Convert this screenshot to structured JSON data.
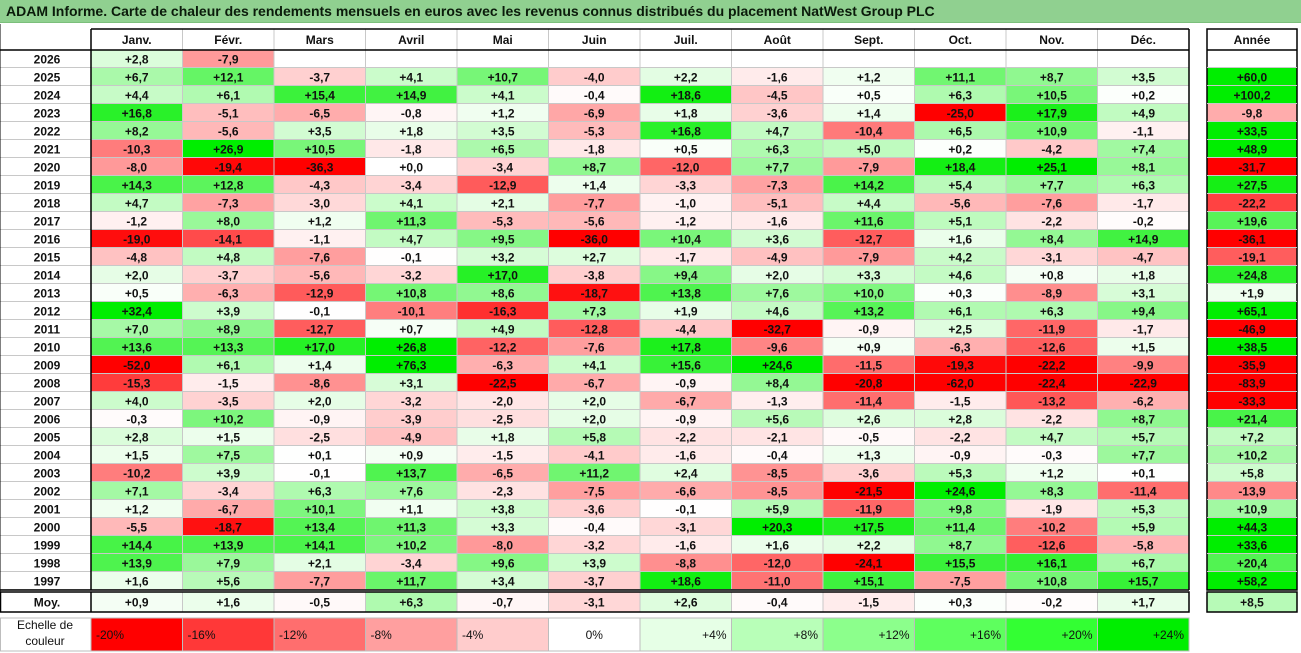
{
  "title": "ADAM Informe. Carte de chaleur des rendements mensuels en euros avec les revenus connus distribués du placement NatWest Group PLC",
  "chart_data": {
    "type": "heatmap",
    "columns": [
      "Janv.",
      "Févr.",
      "Mars",
      "Avril",
      "Mai",
      "Juin",
      "Juil.",
      "Août",
      "Sept.",
      "Oct.",
      "Nov.",
      "Déc."
    ],
    "annual_header": "Année",
    "rows": [
      {
        "year": "2026",
        "values": [
          "+2,8",
          "-7,9",
          "",
          "",
          "",
          "",
          "",
          "",
          "",
          "",
          "",
          ""
        ],
        "annual": ""
      },
      {
        "year": "2025",
        "values": [
          "+6,7",
          "+12,1",
          "-3,7",
          "+4,1",
          "+10,7",
          "-4,0",
          "+2,2",
          "-1,6",
          "+1,2",
          "+11,1",
          "+8,7",
          "+3,5"
        ],
        "annual": "+60,0"
      },
      {
        "year": "2024",
        "values": [
          "+4,4",
          "+6,1",
          "+15,4",
          "+14,9",
          "+4,1",
          "-0,4",
          "+18,6",
          "-4,5",
          "+0,5",
          "+6,3",
          "+10,5",
          "+0,2"
        ],
        "annual": "+100,2"
      },
      {
        "year": "2023",
        "values": [
          "+16,8",
          "-5,1",
          "-6,5",
          "-0,8",
          "+1,2",
          "-6,9",
          "+1,8",
          "-3,6",
          "+1,4",
          "-25,0",
          "+17,9",
          "+4,9"
        ],
        "annual": "-9,8"
      },
      {
        "year": "2022",
        "values": [
          "+8,2",
          "-5,6",
          "+3,5",
          "+1,8",
          "+3,5",
          "-5,3",
          "+16,8",
          "+4,7",
          "-10,4",
          "+6,5",
          "+10,9",
          "-1,1"
        ],
        "annual": "+33,5"
      },
      {
        "year": "2021",
        "values": [
          "-10,3",
          "+26,9",
          "+10,5",
          "-1,8",
          "+6,5",
          "-1,8",
          "+0,5",
          "+6,3",
          "+5,0",
          "+0,2",
          "-4,2",
          "+7,4"
        ],
        "annual": "+48,9"
      },
      {
        "year": "2020",
        "values": [
          "-8,0",
          "-19,4",
          "-36,3",
          "+0,0",
          "-3,4",
          "+8,7",
          "-12,0",
          "+7,7",
          "-7,9",
          "+18,4",
          "+25,1",
          "+8,1"
        ],
        "annual": "-31,7"
      },
      {
        "year": "2019",
        "values": [
          "+14,3",
          "+12,8",
          "-4,3",
          "-3,4",
          "-12,9",
          "+1,4",
          "-3,3",
          "-7,3",
          "+14,2",
          "+5,4",
          "+7,7",
          "+6,3"
        ],
        "annual": "+27,5"
      },
      {
        "year": "2018",
        "values": [
          "+4,7",
          "-7,3",
          "-3,0",
          "+4,1",
          "+2,1",
          "-7,7",
          "-1,0",
          "-5,1",
          "+4,4",
          "-5,6",
          "-7,6",
          "-1,7"
        ],
        "annual": "-22,2"
      },
      {
        "year": "2017",
        "values": [
          "-1,2",
          "+8,0",
          "+1,2",
          "+11,3",
          "-5,3",
          "-5,6",
          "-1,2",
          "-1,6",
          "+11,6",
          "+5,1",
          "-2,2",
          "-0,2"
        ],
        "annual": "+19,6"
      },
      {
        "year": "2016",
        "values": [
          "-19,0",
          "-14,1",
          "-1,1",
          "+4,7",
          "+9,5",
          "-36,0",
          "+10,4",
          "+3,6",
          "-12,7",
          "+1,6",
          "+8,4",
          "+14,9"
        ],
        "annual": "-36,1"
      },
      {
        "year": "2015",
        "values": [
          "-4,8",
          "+4,8",
          "-7,6",
          "-0,1",
          "+3,2",
          "+2,7",
          "-1,7",
          "-4,9",
          "-7,9",
          "+4,2",
          "-3,1",
          "-4,7"
        ],
        "annual": "-19,1"
      },
      {
        "year": "2014",
        "values": [
          "+2,0",
          "-3,7",
          "-5,6",
          "-3,2",
          "+17,0",
          "-3,8",
          "+9,4",
          "+2,0",
          "+3,3",
          "+4,6",
          "+0,8",
          "+1,8"
        ],
        "annual": "+24,8"
      },
      {
        "year": "2013",
        "values": [
          "+0,5",
          "-6,3",
          "-12,9",
          "+10,8",
          "+8,6",
          "-18,7",
          "+13,8",
          "+7,6",
          "+10,0",
          "+0,3",
          "-8,9",
          "+3,1"
        ],
        "annual": "+1,9"
      },
      {
        "year": "2012",
        "values": [
          "+32,4",
          "+3,9",
          "-0,1",
          "-10,1",
          "-16,3",
          "+7,3",
          "+1,9",
          "+4,6",
          "+13,2",
          "+6,1",
          "+6,3",
          "+9,4"
        ],
        "annual": "+65,1"
      },
      {
        "year": "2011",
        "values": [
          "+7,0",
          "+8,9",
          "-12,7",
          "+0,7",
          "+4,9",
          "-12,8",
          "-4,4",
          "-32,7",
          "-0,9",
          "+2,5",
          "-11,9",
          "-1,7"
        ],
        "annual": "-46,9"
      },
      {
        "year": "2010",
        "values": [
          "+13,6",
          "+13,3",
          "+17,0",
          "+26,8",
          "-12,2",
          "-7,6",
          "+17,8",
          "-9,6",
          "+0,9",
          "-6,3",
          "-12,6",
          "+1,5"
        ],
        "annual": "+38,5"
      },
      {
        "year": "2009",
        "values": [
          "-52,0",
          "+6,1",
          "+1,4",
          "+76,3",
          "-6,3",
          "+4,1",
          "+15,6",
          "+24,6",
          "-11,5",
          "-19,3",
          "-22,2",
          "-9,9"
        ],
        "annual": "-35,9"
      },
      {
        "year": "2008",
        "values": [
          "-15,3",
          "-1,5",
          "-8,6",
          "+3,1",
          "-22,5",
          "-6,7",
          "-0,9",
          "+8,4",
          "-20,8",
          "-62,0",
          "-22,4",
          "-22,9"
        ],
        "annual": "-83,9"
      },
      {
        "year": "2007",
        "values": [
          "+4,0",
          "-3,5",
          "+2,0",
          "-3,2",
          "-2,0",
          "+2,0",
          "-6,7",
          "-1,3",
          "-11,4",
          "-1,5",
          "-13,2",
          "-6,2"
        ],
        "annual": "-33,3"
      },
      {
        "year": "2006",
        "values": [
          "-0,3",
          "+10,2",
          "-0,9",
          "-3,9",
          "-2,5",
          "+2,0",
          "-0,9",
          "+5,6",
          "+2,6",
          "+2,8",
          "-2,2",
          "+8,7"
        ],
        "annual": "+21,4"
      },
      {
        "year": "2005",
        "values": [
          "+2,8",
          "+1,5",
          "-2,5",
          "-4,9",
          "+1,8",
          "+5,8",
          "-2,2",
          "-2,1",
          "-0,5",
          "-2,2",
          "+4,7",
          "+5,7"
        ],
        "annual": "+7,2"
      },
      {
        "year": "2004",
        "values": [
          "+1,5",
          "+7,5",
          "+0,1",
          "+0,9",
          "-1,5",
          "-4,1",
          "-1,6",
          "-0,4",
          "+1,3",
          "-0,9",
          "-0,3",
          "+7,7"
        ],
        "annual": "+10,2"
      },
      {
        "year": "2003",
        "values": [
          "-10,2",
          "+3,9",
          "-0,1",
          "+13,7",
          "-6,5",
          "+11,2",
          "+2,4",
          "-8,5",
          "-3,6",
          "+5,3",
          "+1,2",
          "+0,1"
        ],
        "annual": "+5,8"
      },
      {
        "year": "2002",
        "values": [
          "+7,1",
          "-3,4",
          "+6,3",
          "+7,6",
          "-2,3",
          "-7,5",
          "-6,6",
          "-8,5",
          "-21,5",
          "+24,6",
          "+8,3",
          "-11,4"
        ],
        "annual": "-13,9"
      },
      {
        "year": "2001",
        "values": [
          "+1,2",
          "-6,7",
          "+10,1",
          "+1,1",
          "+3,8",
          "-3,6",
          "-0,1",
          "+5,9",
          "-11,9",
          "+9,8",
          "-1,9",
          "+5,3"
        ],
        "annual": "+10,9"
      },
      {
        "year": "2000",
        "values": [
          "-5,5",
          "-18,7",
          "+13,4",
          "+11,3",
          "+3,3",
          "-0,4",
          "-3,1",
          "+20,3",
          "+17,5",
          "+11,4",
          "-10,2",
          "+5,9"
        ],
        "annual": "+44,3"
      },
      {
        "year": "1999",
        "values": [
          "+14,4",
          "+13,9",
          "+14,1",
          "+10,2",
          "-8,0",
          "-3,2",
          "-1,6",
          "+1,6",
          "+2,2",
          "+8,7",
          "-12,6",
          "-5,8"
        ],
        "annual": "+33,6"
      },
      {
        "year": "1998",
        "values": [
          "+13,9",
          "+7,9",
          "+2,1",
          "-3,4",
          "+9,6",
          "+3,9",
          "-8,8",
          "-12,0",
          "-24,1",
          "+15,5",
          "+16,1",
          "+6,7"
        ],
        "annual": "+20,4"
      },
      {
        "year": "1997",
        "values": [
          "+1,6",
          "+5,6",
          "-7,7",
          "+11,7",
          "+3,4",
          "-3,7",
          "+18,6",
          "-11,0",
          "+15,1",
          "-7,5",
          "+10,8",
          "+15,7"
        ],
        "annual": "+58,2"
      }
    ],
    "average": {
      "label": "Moy.",
      "values": [
        "+0,9",
        "+1,6",
        "-0,5",
        "+6,3",
        "-0,7",
        "-3,1",
        "+2,6",
        "-0,4",
        "-1,5",
        "+0,3",
        "-0,2",
        "+1,7"
      ],
      "annual": "+8,5"
    },
    "scale": {
      "label_line1": "Echelle de",
      "label_line2": "couleur",
      "steps": [
        "-20%",
        "-16%",
        "-12%",
        "-8%",
        "-4%",
        "0%",
        "+4%",
        "+8%",
        "+12%",
        "+16%",
        "+20%",
        "+24%"
      ],
      "colors": [
        "#ff0000",
        "#ff3838",
        "#ff6e6e",
        "#ff9f9f",
        "#ffcccc",
        "#ffffff",
        "#e6ffe6",
        "#b8ffb8",
        "#8cff8c",
        "#5eff5e",
        "#33ff33",
        "#00ee00"
      ]
    },
    "colors": {
      "negative_max": "#ff0000",
      "neutral": "#ffffff",
      "positive_max": "#00ee00",
      "title_bar": "#90d090"
    }
  }
}
